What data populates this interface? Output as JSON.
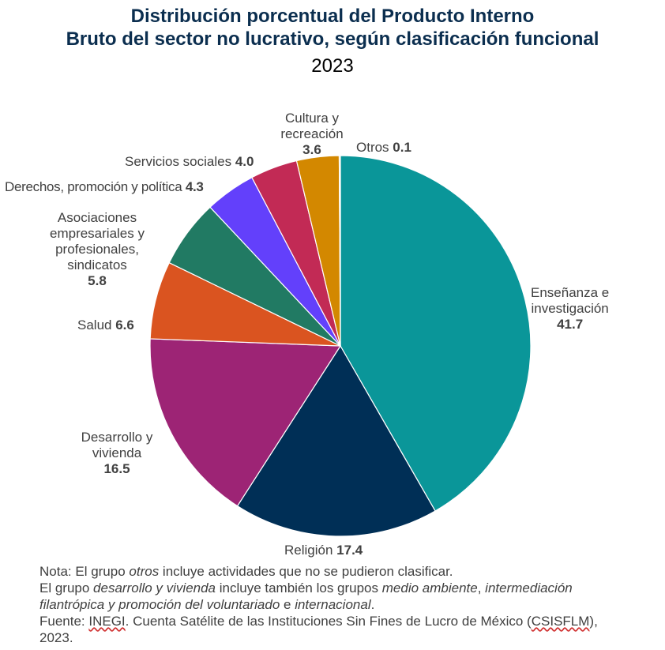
{
  "chart_data": {
    "type": "pie",
    "title_line1": "Distribución porcentual del Producto Interno",
    "title_line2": "Bruto del sector no lucrativo, según clasificación funcional",
    "subtitle": "2023",
    "slices": [
      {
        "label": "Enseñanza e investigación",
        "label_l1": "Enseñanza e",
        "label_l2": "investigación",
        "value": 41.7,
        "value_text": "41.7",
        "color": "#0a9699"
      },
      {
        "label": "Religión",
        "value": 17.4,
        "value_text": "17.4",
        "color": "#002f56"
      },
      {
        "label": "Desarrollo y vivienda",
        "label_l1": "Desarrollo y",
        "label_l2": "vivienda",
        "value": 16.5,
        "value_text": "16.5",
        "color": "#9d2475"
      },
      {
        "label": "Salud",
        "value": 6.6,
        "value_text": "6.6",
        "color": "#da5420"
      },
      {
        "label": "Asociaciones empresariales y profesionales, sindicatos",
        "label_l1": "Asociaciones",
        "label_l2": "empresariales y",
        "label_l3": "profesionales,",
        "label_l4": "sindicatos",
        "value": 5.8,
        "value_text": "5.8",
        "color": "#217a63"
      },
      {
        "label": "Derechos, promoción y política",
        "value": 4.3,
        "value_text": "4.3",
        "color": "#6340fb"
      },
      {
        "label": "Servicios sociales",
        "value": 4.0,
        "value_text": "4.0",
        "color": "#c22a55"
      },
      {
        "label": "Cultura y recreación",
        "label_l1": "Cultura y",
        "label_l2": "recreación",
        "value": 3.6,
        "value_text": "3.6",
        "color": "#d38800"
      },
      {
        "label": "Otros",
        "value": 0.1,
        "value_text": "0.1",
        "color": "#b5ba8a"
      }
    ]
  },
  "notes": {
    "line1_a": "Nota: El grupo ",
    "line1_b": "otros",
    "line1_c": " incluye actividades que no se pudieron clasificar.",
    "line2_a": "El grupo ",
    "line2_b": "desarrollo y vivienda",
    "line2_c": " incluye también los grupos ",
    "line2_d": "medio ambiente",
    "line2_e": ", ",
    "line2_f": "intermediación",
    "line3_a": "filantrópica y promoción del voluntariado",
    "line3_b": " e ",
    "line3_c": "internacional",
    "line3_d": ".",
    "line4_a": "Fuente: ",
    "line4_b": "INEGI",
    "line4_c": ". Cuenta Satélite de las Instituciones Sin Fines de Lucro de México (",
    "line4_d": "CSISFLM",
    "line4_e": "),",
    "line5": "2023."
  }
}
